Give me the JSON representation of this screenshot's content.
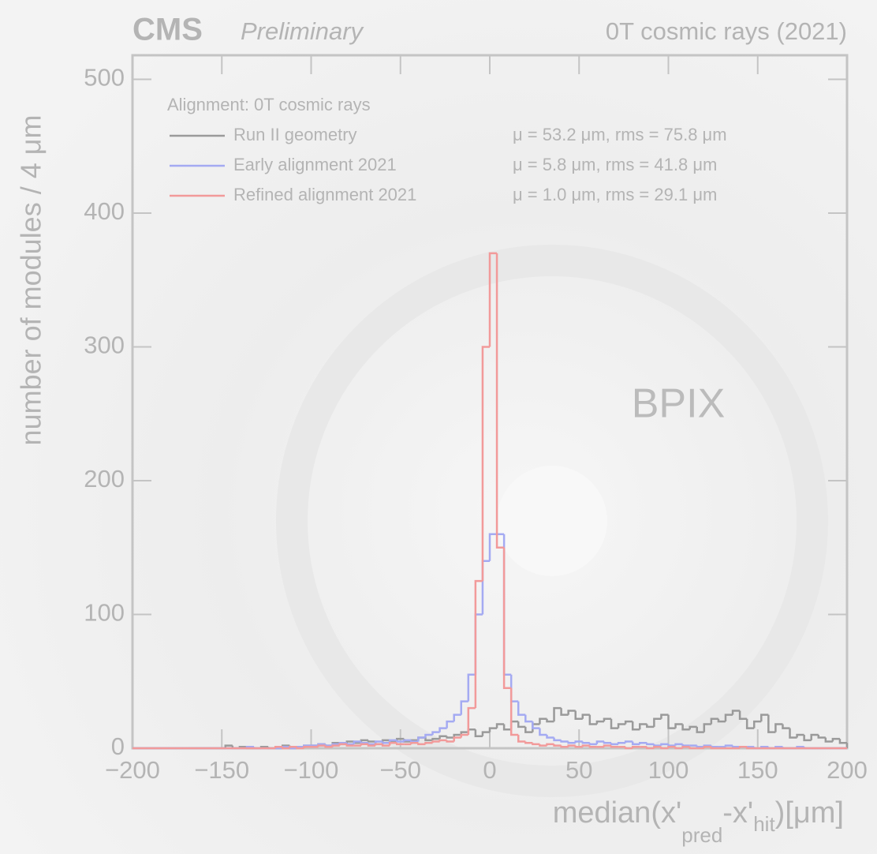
{
  "chart_data": {
    "type": "histogram",
    "title": "CMS",
    "subtitle": "Preliminary",
    "top_right_text": "0T cosmic rays (2021)",
    "annotation": "BPIX",
    "legend_title": "Alignment: 0T cosmic rays",
    "y_label": "number of modules / 4  μm",
    "x_label": [
      "median(x'",
      "pred",
      "-x'",
      "hit",
      ")[μm]"
    ],
    "xlim": [
      -200,
      200
    ],
    "ylim": [
      0,
      518
    ],
    "xticks": [
      {
        "value": -200,
        "label": "−200"
      },
      {
        "value": -150,
        "label": "−150"
      },
      {
        "value": -100,
        "label": "−100"
      },
      {
        "value": -50,
        "label": "−50"
      },
      0,
      50,
      100,
      150,
      200
    ],
    "yticks": [
      0,
      100,
      200,
      300,
      400,
      500
    ],
    "bins": [
      -200,
      -196,
      -192,
      -188,
      -184,
      -180,
      -176,
      -172,
      -168,
      -164,
      -160,
      -156,
      -152,
      -148,
      -144,
      -140,
      -136,
      -132,
      -128,
      -124,
      -120,
      -116,
      -112,
      -108,
      -104,
      -100,
      -96,
      -92,
      -88,
      -84,
      -80,
      -76,
      -72,
      -68,
      -64,
      -60,
      -56,
      -52,
      -48,
      -44,
      -40,
      -36,
      -32,
      -28,
      -24,
      -20,
      -16,
      -12,
      -8,
      -4,
      0,
      4,
      8,
      12,
      16,
      20,
      24,
      28,
      32,
      36,
      40,
      44,
      48,
      52,
      56,
      60,
      64,
      68,
      72,
      76,
      80,
      84,
      88,
      92,
      96,
      100,
      104,
      108,
      112,
      116,
      120,
      124,
      128,
      132,
      136,
      140,
      144,
      148,
      152,
      156,
      160,
      164,
      168,
      172,
      176,
      180,
      184,
      188,
      192,
      196,
      200
    ],
    "series": [
      {
        "name": "Run II geometry",
        "stats": "μ = 53.2 μm,  rms = 75.8 μm",
        "color": "#9a9a9a",
        "values": [
          0,
          0,
          0,
          0,
          0,
          0,
          0,
          0,
          0,
          0,
          0,
          0,
          0,
          2,
          0,
          1,
          0,
          0,
          1,
          0,
          0,
          2,
          0,
          1,
          2,
          2,
          3,
          2,
          4,
          3,
          5,
          4,
          6,
          5,
          3,
          6,
          5,
          7,
          5,
          6,
          8,
          6,
          7,
          9,
          8,
          10,
          12,
          14,
          9,
          12,
          15,
          18,
          14,
          20,
          16,
          12,
          18,
          22,
          20,
          30,
          25,
          28,
          22,
          25,
          18,
          20,
          22,
          15,
          18,
          20,
          14,
          18,
          16,
          22,
          25,
          15,
          18,
          14,
          16,
          12,
          18,
          22,
          20,
          25,
          28,
          22,
          15,
          20,
          25,
          12,
          18,
          15,
          8,
          10,
          6,
          10,
          8,
          5,
          7,
          4
        ]
      },
      {
        "name": "Early alignment 2021",
        "stats": "μ = 5.8 μm,  rms = 41.8 μm",
        "color": "#a4aaf2",
        "values": [
          0,
          0,
          0,
          0,
          0,
          0,
          0,
          0,
          0,
          0,
          0,
          0,
          0,
          0,
          0,
          0,
          1,
          0,
          0,
          0,
          0,
          1,
          0,
          1,
          2,
          2,
          3,
          2,
          3,
          4,
          3,
          5,
          4,
          3,
          5,
          4,
          6,
          5,
          6,
          5,
          8,
          10,
          12,
          15,
          20,
          25,
          35,
          55,
          100,
          140,
          160,
          160,
          55,
          35,
          25,
          20,
          15,
          10,
          8,
          6,
          5,
          4,
          5,
          4,
          3,
          5,
          4,
          3,
          4,
          5,
          3,
          4,
          3,
          2,
          3,
          2,
          3,
          2,
          2,
          1,
          2,
          1,
          1,
          2,
          1,
          1,
          1,
          0,
          1,
          0,
          1,
          0,
          0,
          1,
          0,
          0,
          0,
          0,
          0,
          0
        ]
      },
      {
        "name": "Refined alignment 2021",
        "stats": "μ = 1.0 μm,  rms = 29.1 μm",
        "color": "#f29a9a",
        "values": [
          0,
          0,
          0,
          0,
          0,
          0,
          0,
          0,
          0,
          0,
          0,
          0,
          0,
          0,
          0,
          0,
          0,
          0,
          0,
          0,
          1,
          0,
          1,
          0,
          1,
          1,
          2,
          1,
          2,
          3,
          2,
          2,
          3,
          2,
          3,
          2,
          4,
          3,
          3,
          4,
          3,
          4,
          5,
          6,
          5,
          8,
          10,
          30,
          125,
          300,
          370,
          150,
          45,
          10,
          5,
          4,
          3,
          2,
          3,
          2,
          1,
          2,
          1,
          2,
          1,
          1,
          2,
          1,
          1,
          0,
          1,
          1,
          0,
          1,
          0,
          1,
          0,
          1,
          0,
          0,
          1,
          0,
          0,
          0,
          0,
          1,
          0,
          0,
          0,
          0,
          0,
          0,
          0,
          0,
          0,
          0,
          0,
          0,
          0,
          0
        ]
      }
    ]
  }
}
